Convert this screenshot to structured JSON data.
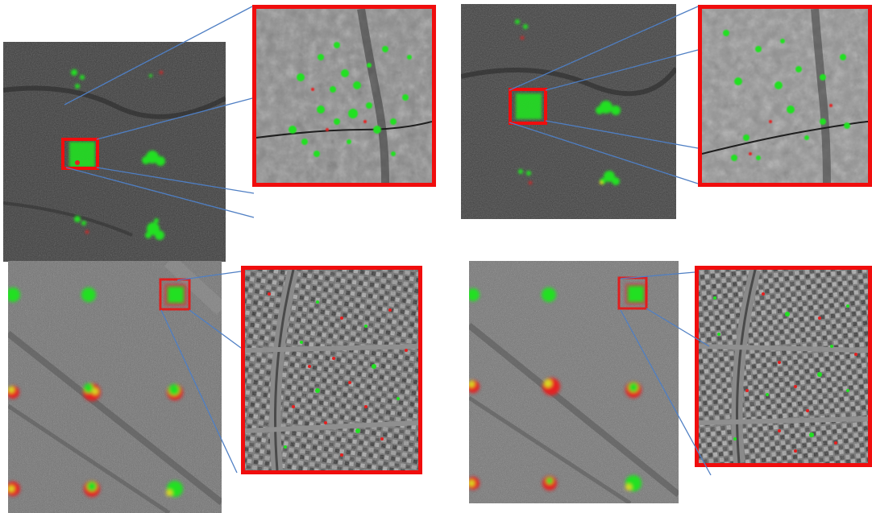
{
  "figure": {
    "panels": [
      {
        "id": "top-left",
        "terrain": "desert-hills",
        "base_tone": "#3e3e3e"
      },
      {
        "id": "top-right",
        "terrain": "desert-hills",
        "base_tone": "#424242"
      },
      {
        "id": "bottom-left",
        "terrain": "urban-dense",
        "base_tone": "#6a6a6a"
      },
      {
        "id": "bottom-right",
        "terrain": "urban-dense",
        "base_tone": "#6e6e6e"
      }
    ],
    "colors": {
      "highlight_box": "#f00d0d",
      "connector_line": "#4f7fc4",
      "match_green": "#22e022",
      "match_red": "#e52020",
      "match_yellow": "#d8d820",
      "background": "#ffffff"
    }
  }
}
